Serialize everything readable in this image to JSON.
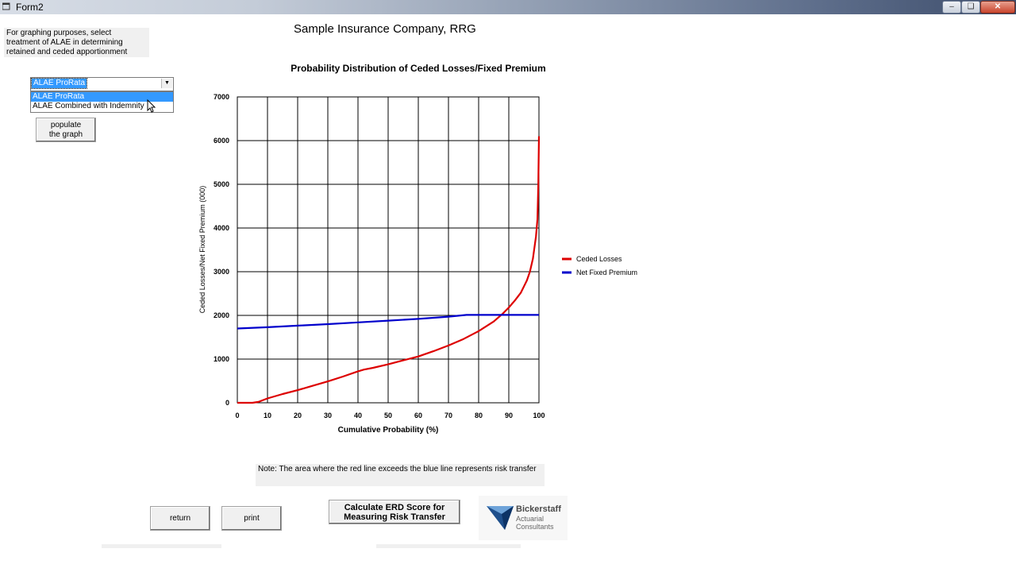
{
  "window": {
    "title": "Form2",
    "controls": [
      "minimize",
      "restore",
      "close"
    ]
  },
  "instructions": "For graphing purposes, select treatment of ALAE in determining retained and ceded apportionment",
  "combo": {
    "selected": "ALAE ProRata",
    "options": [
      "ALAE ProRata",
      "ALAE Combined with Indemnity"
    ]
  },
  "buttons": {
    "populate": "populate the graph",
    "return": "return",
    "print": "print",
    "erd_line1": "Calculate ERD Score for",
    "erd_line2": "Measuring Risk Transfer"
  },
  "company": "Sample Insurance Company, RRG",
  "note": "Note: The area where the red line exceeds the blue line represents risk transfer",
  "logo": {
    "name": "Bickerstaff",
    "line2": "Actuarial",
    "line3": "Consultants"
  },
  "chart_data": {
    "type": "line",
    "title": "Probability Distribution of Ceded Losses/Fixed Premium",
    "xlabel": "Cumulative Probability (%)",
    "ylabel": "Ceded Losses/Net Fixed Premium (000)",
    "xlim": [
      0,
      100
    ],
    "ylim": [
      0,
      7000
    ],
    "xticks": [
      0,
      10,
      20,
      30,
      40,
      50,
      60,
      70,
      80,
      90,
      100
    ],
    "yticks": [
      0,
      1000,
      2000,
      3000,
      4000,
      5000,
      6000,
      7000
    ],
    "grid": true,
    "legend_position": "right",
    "series": [
      {
        "name": "Ceded Losses",
        "color": "#dd0000",
        "x": [
          0,
          5,
          7,
          10,
          15,
          20,
          25,
          30,
          35,
          40,
          42,
          45,
          50,
          55,
          60,
          65,
          70,
          75,
          80,
          85,
          88,
          90,
          92,
          94,
          95,
          96,
          97,
          98,
          99,
          99.5,
          99.8,
          100
        ],
        "y": [
          0,
          0,
          20,
          100,
          200,
          290,
          390,
          490,
          600,
          720,
          760,
          800,
          880,
          970,
          1060,
          1180,
          1310,
          1460,
          1640,
          1860,
          2040,
          2180,
          2340,
          2520,
          2660,
          2800,
          3000,
          3300,
          3800,
          4200,
          5000,
          6100
        ]
      },
      {
        "name": "Net Fixed Premium",
        "color": "#0000cc",
        "x": [
          0,
          10,
          20,
          30,
          40,
          50,
          60,
          70,
          76,
          80,
          90,
          100
        ],
        "y": [
          1700,
          1730,
          1765,
          1800,
          1840,
          1880,
          1920,
          1970,
          2010,
          2010,
          2010,
          2010
        ]
      }
    ]
  }
}
